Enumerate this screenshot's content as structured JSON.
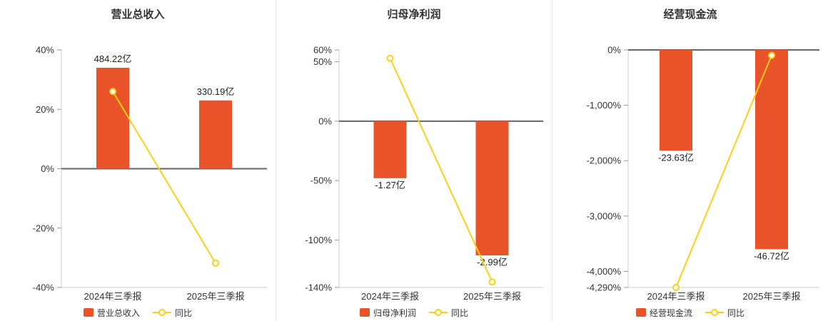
{
  "page": {
    "background": "#ffffff"
  },
  "colors": {
    "bar": "#e8532a",
    "line": "#fdd017",
    "axis_line": "#cccccc",
    "tick": "#999999",
    "zero_line": "#666666",
    "text": "#333333",
    "value_label": "#222222"
  },
  "chart_data": [
    {
      "type": "bar+line",
      "title": "营业总收入",
      "categories": [
        "2024年三季报",
        "2025年三季报"
      ],
      "y_axis": {
        "min": -40,
        "max": 40,
        "ticks": [
          40,
          20,
          0,
          -20,
          -40
        ],
        "tick_labels": [
          "40%",
          "20%",
          "0%",
          "-20%",
          "-40%"
        ]
      },
      "bar_series": {
        "name": "营业总收入",
        "color": "#e8532a",
        "values": [
          484.22,
          330.19
        ],
        "labels": [
          "484.22亿",
          "330.19亿"
        ],
        "plotted_pct": [
          34,
          23
        ]
      },
      "line_series": {
        "name": "同比",
        "color": "#fdd017",
        "values_pct": [
          26,
          -31.8
        ]
      },
      "legend_position": "bottom",
      "grid": false
    },
    {
      "type": "bar+line",
      "title": "归母净利润",
      "categories": [
        "2024年三季报",
        "2025年三季报"
      ],
      "y_axis": {
        "min": -140,
        "max": 60,
        "ticks": [
          60,
          50,
          0,
          -50,
          -100,
          -140
        ],
        "tick_labels": [
          "60%",
          "50%",
          "0%",
          "-50%",
          "-100%",
          "-140%"
        ]
      },
      "bar_series": {
        "name": "归母净利润",
        "color": "#e8532a",
        "values": [
          -1.27,
          -2.99
        ],
        "labels": [
          "-1.27亿",
          "-2.99亿"
        ],
        "plotted_pct": [
          -48,
          -113
        ]
      },
      "line_series": {
        "name": "同比",
        "color": "#fdd017",
        "values_pct": [
          53,
          -135.4
        ]
      },
      "legend_position": "bottom",
      "grid": false
    },
    {
      "type": "bar+line",
      "title": "经营现金流",
      "categories": [
        "2024年三季报",
        "2025年三季报"
      ],
      "y_axis": {
        "min": -4290,
        "max": 0,
        "ticks": [
          0,
          -1000,
          -2000,
          -3000,
          -4000,
          -4290
        ],
        "tick_labels": [
          "0%",
          "-1,000%",
          "-2,000%",
          "-3,000%",
          "-4,000%",
          "-4,290%"
        ]
      },
      "bar_series": {
        "name": "经营现金流",
        "color": "#e8532a",
        "values": [
          -23.63,
          -46.72
        ],
        "labels": [
          "-23.63亿",
          "-46.72亿"
        ],
        "plotted_pct": [
          -1820,
          -3598
        ]
      },
      "line_series": {
        "name": "同比",
        "color": "#fdd017",
        "values_pct": [
          -4290,
          -97.7
        ]
      },
      "legend_position": "bottom",
      "grid": false
    }
  ]
}
